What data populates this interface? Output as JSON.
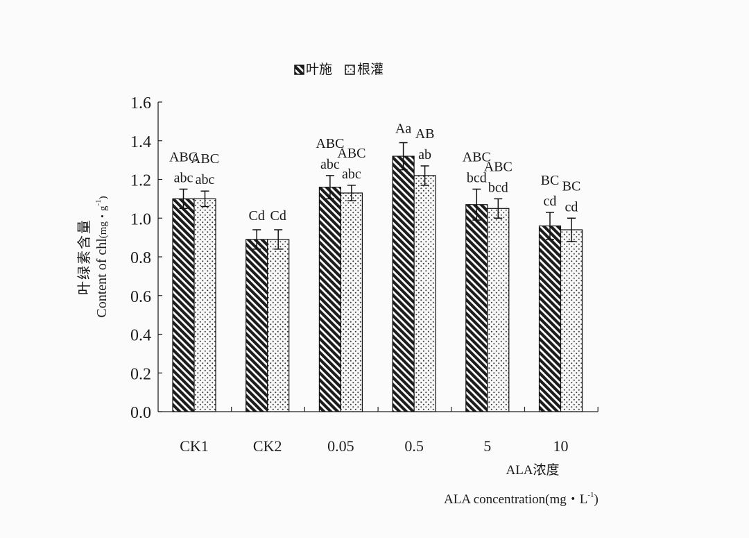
{
  "chart_data": {
    "type": "bar",
    "legend": {
      "placement": "top-center",
      "entries": [
        "叶施",
        "根灌"
      ]
    },
    "series": [
      {
        "name": "叶施",
        "pattern": "diagonal-hatch",
        "values": [
          1.1,
          0.89,
          1.16,
          1.32,
          1.07,
          0.96
        ],
        "errors": [
          0.05,
          0.05,
          0.06,
          0.07,
          0.08,
          0.07
        ],
        "letters_upper": [
          "ABC",
          "Cd",
          "ABC",
          "Aa",
          "ABC",
          "BC"
        ],
        "letters_lower": [
          "abc",
          "",
          "abc",
          "",
          "bcd",
          "cd"
        ]
      },
      {
        "name": "根灌",
        "pattern": "dots",
        "values": [
          1.1,
          0.89,
          1.13,
          1.22,
          1.05,
          0.94
        ],
        "errors": [
          0.04,
          0.05,
          0.04,
          0.05,
          0.05,
          0.06
        ],
        "letters_upper": [
          "ABC",
          "Cd",
          "ABC",
          "AB",
          "ABC",
          "BC"
        ],
        "letters_lower": [
          "abc",
          "",
          "abc",
          "ab",
          "bcd",
          "cd"
        ]
      }
    ],
    "categories": [
      "CK1",
      "CK2",
      "0.05",
      "0.5",
      "5",
      "10"
    ],
    "yticks": [
      "0.0",
      "0.2",
      "0.4",
      "0.6",
      "0.8",
      "1.0",
      "1.2",
      "1.4",
      "1.6"
    ],
    "ylim": [
      0,
      1.6
    ],
    "ylabel_cn": "叶绿素含量",
    "ylabel_en": "Content of chl",
    "ylabel_unit": "(mg・g",
    "ylabel_sup": "-1",
    "xlabel_cn": "ALA浓度",
    "xlabel_en": "ALA concentration(mg・L",
    "xlabel_sup": "-1",
    "grid": false
  }
}
